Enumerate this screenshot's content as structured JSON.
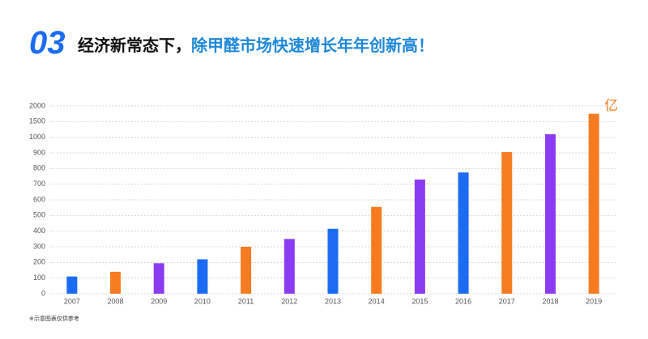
{
  "chart_data": {
    "type": "bar",
    "badge": "03",
    "title": "经济新常态下，",
    "title_highlight": "除甲醛市场快速增长年年创新高！",
    "unit": "亿",
    "footnote": "※示意图表仅供参考",
    "categories": [
      "2007",
      "2008",
      "2009",
      "2010",
      "2011",
      "2012",
      "2013",
      "2014",
      "2015",
      "2016",
      "2017",
      "2018",
      "2019"
    ],
    "values": [
      110,
      140,
      195,
      220,
      300,
      350,
      415,
      555,
      730,
      775,
      905,
      1100,
      1750
    ],
    "colors": [
      "#1b6cf2",
      "#f67b21",
      "#8b3cf2",
      "#1b6cf2",
      "#f67b21",
      "#8b3cf2",
      "#1b6cf2",
      "#f67b21",
      "#8b3cf2",
      "#1b6cf2",
      "#f67b21",
      "#8b3cf2",
      "#f67b21"
    ],
    "ylim": [
      0,
      2000
    ],
    "yticks": [
      0,
      100,
      200,
      300,
      400,
      500,
      600,
      700,
      800,
      900,
      1000,
      1500,
      2000
    ],
    "grid": true
  }
}
